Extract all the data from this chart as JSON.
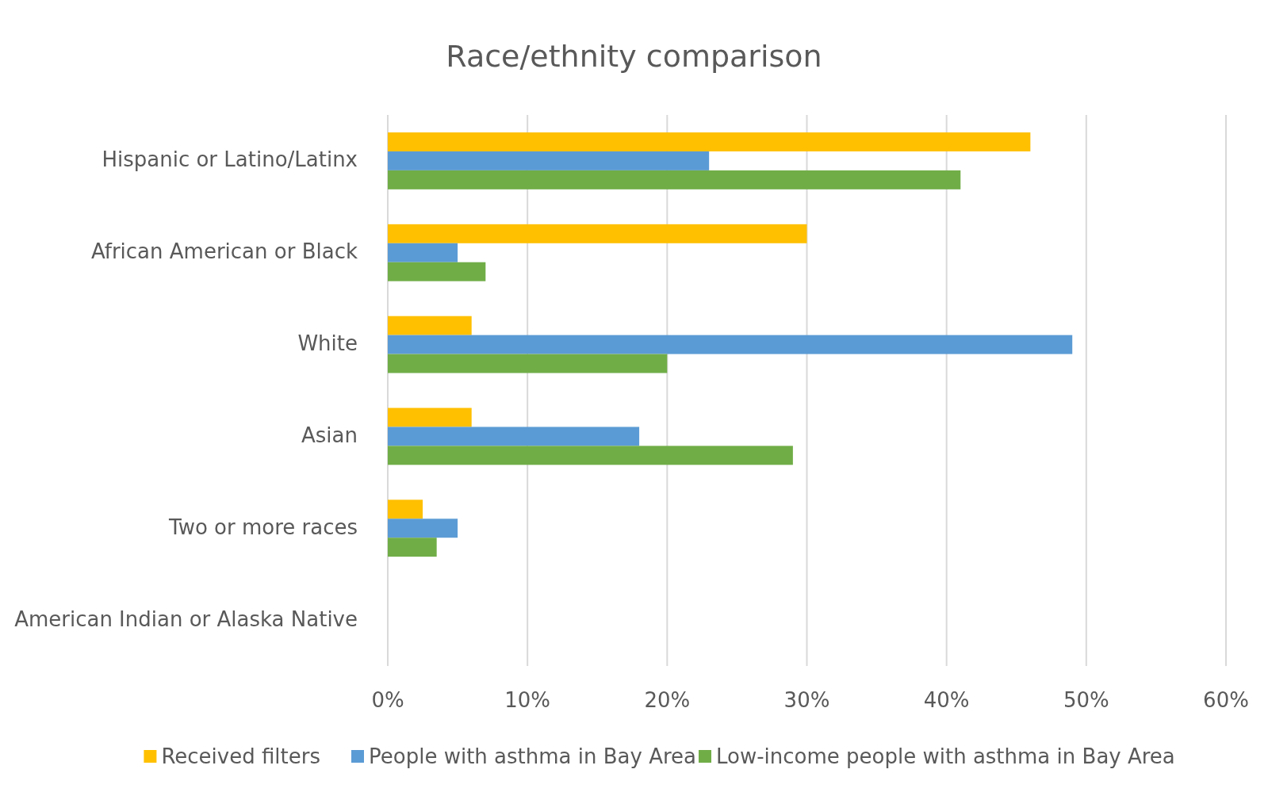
{
  "chart_data": {
    "type": "bar",
    "orientation": "horizontal",
    "title": "Race/ethnity comparison",
    "categories": [
      "Hispanic or Latino/Latinx",
      "African American or Black",
      "White",
      "Asian",
      "Two or more races",
      "American Indian or Alaska Native"
    ],
    "series": [
      {
        "name": "Received filters",
        "color": "#ffc000",
        "values": [
          46,
          30,
          6,
          6,
          2.5,
          0
        ]
      },
      {
        "name": "People with asthma in Bay Area",
        "color": "#5b9bd5",
        "values": [
          23,
          5,
          49,
          18,
          5,
          0
        ]
      },
      {
        "name": "Low-income people with asthma in Bay Area",
        "color": "#70ad47",
        "values": [
          41,
          7,
          20,
          29,
          3.5,
          0
        ]
      }
    ],
    "xlim": [
      0,
      60
    ],
    "xticks": [
      {
        "value": 0,
        "label": "0%"
      },
      {
        "value": 10,
        "label": "10%"
      },
      {
        "value": 20,
        "label": "20%"
      },
      {
        "value": 30,
        "label": "30%"
      },
      {
        "value": 40,
        "label": "40%"
      },
      {
        "value": 50,
        "label": "50%"
      },
      {
        "value": 60,
        "label": "60%"
      }
    ],
    "grid": "x",
    "legend": "bottom"
  }
}
